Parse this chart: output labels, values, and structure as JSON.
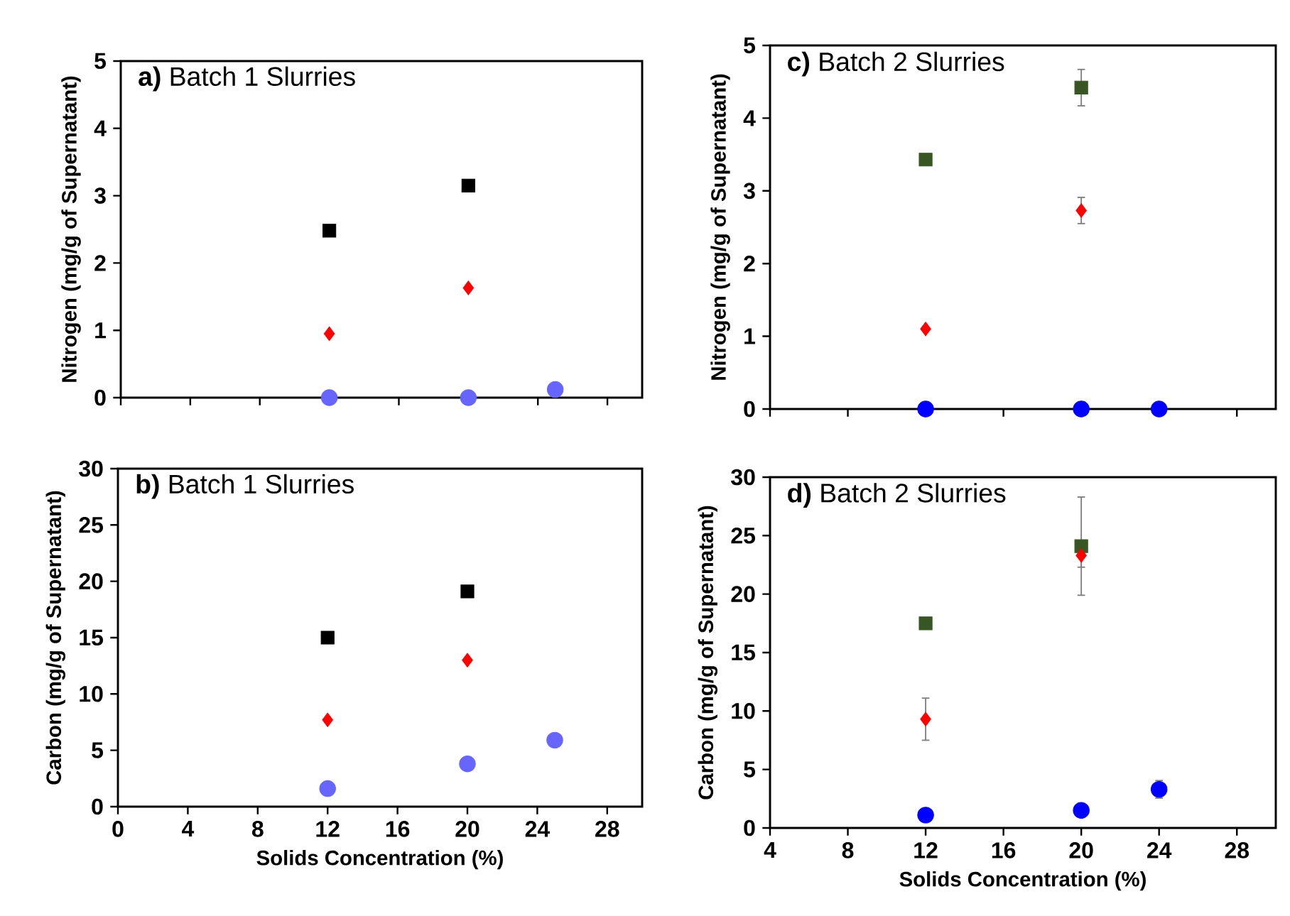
{
  "chart_data": [
    {
      "type": "scatter",
      "title": "**a)** Batch 1 Slurries",
      "ylabel": "Nitrogen (mg/g of Supernatant)",
      "xlim": [
        0,
        30
      ],
      "ylim": [
        0,
        5
      ],
      "xticks": [
        0,
        4,
        8,
        12,
        16,
        20,
        24,
        28
      ],
      "yticks": [
        0,
        1,
        2,
        3,
        4,
        5
      ],
      "tick_labels": "y",
      "series": [
        {
          "color": "#000000",
          "marker": "square",
          "x": [
            12,
            20
          ],
          "values": [
            2.48,
            3.15
          ]
        },
        {
          "color": "#ff0000",
          "marker": "diamond",
          "x": [
            12,
            20
          ],
          "values": [
            0.95,
            1.63
          ]
        },
        {
          "color": "#6666ff",
          "marker": "circle",
          "x": [
            12,
            20,
            25
          ],
          "values": [
            0,
            0,
            0.12
          ]
        }
      ]
    },
    {
      "type": "scatter",
      "title": "**c)** Batch 2 Slurries",
      "ylabel": "Nitrogen (mg/g of Supernatant)",
      "xlim": [
        4,
        30
      ],
      "ylim": [
        0,
        5
      ],
      "xticks": [
        4,
        8,
        12,
        16,
        20,
        24,
        28
      ],
      "yticks": [
        0,
        1,
        2,
        3,
        4,
        5
      ],
      "tick_labels": "y",
      "series": [
        {
          "color": "#375623",
          "marker": "square",
          "x": [
            12,
            20
          ],
          "values": [
            3.43,
            4.42
          ],
          "errors": [
            null,
            0.25
          ]
        },
        {
          "color": "#ff0000",
          "marker": "diamond",
          "x": [
            12,
            20
          ],
          "values": [
            1.1,
            2.73
          ],
          "errors": [
            null,
            0.18
          ]
        },
        {
          "color": "#0000ff",
          "marker": "circle",
          "x": [
            12,
            20,
            24
          ],
          "values": [
            0,
            0,
            0
          ]
        }
      ]
    },
    {
      "type": "scatter",
      "title": "**b)** Batch 1 Slurries",
      "xlabel": "Solids Concentration (%)",
      "ylabel": "Carbon  (mg/g of Supernatant)",
      "xlim": [
        0,
        30
      ],
      "ylim": [
        0,
        30
      ],
      "xticks": [
        0,
        4,
        8,
        12,
        16,
        20,
        24,
        28
      ],
      "yticks": [
        0,
        5,
        10,
        15,
        20,
        25,
        30
      ],
      "series": [
        {
          "color": "#000000",
          "marker": "square",
          "x": [
            12,
            20
          ],
          "values": [
            15,
            19.1
          ]
        },
        {
          "color": "#ff0000",
          "marker": "diamond",
          "x": [
            12,
            20
          ],
          "values": [
            7.7,
            13
          ]
        },
        {
          "color": "#6666ff",
          "marker": "circle",
          "x": [
            12,
            20,
            25
          ],
          "values": [
            1.6,
            3.8,
            5.9
          ]
        }
      ]
    },
    {
      "type": "scatter",
      "title": "**d)** Batch 2 Slurries",
      "xlabel": "Solids Concentration (%)",
      "ylabel": "Carbon  (mg/g of Supernatant)",
      "xlim": [
        4,
        30
      ],
      "ylim": [
        0,
        30
      ],
      "xticks": [
        4,
        8,
        12,
        16,
        20,
        24,
        28
      ],
      "yticks": [
        0,
        5,
        10,
        15,
        20,
        25,
        30
      ],
      "series": [
        {
          "color": "#375623",
          "marker": "square",
          "x": [
            12,
            20
          ],
          "values": [
            17.5,
            24.1
          ],
          "errors": [
            null,
            4.2
          ]
        },
        {
          "color": "#ff0000",
          "marker": "diamond",
          "x": [
            12,
            20
          ],
          "values": [
            9.3,
            23.3
          ],
          "errors": [
            1.8,
            1.0
          ]
        },
        {
          "color": "#0000ff",
          "marker": "circle",
          "x": [
            12,
            20,
            24
          ],
          "values": [
            1.1,
            1.5,
            3.3
          ],
          "errors": [
            null,
            null,
            0.75
          ]
        }
      ]
    }
  ]
}
